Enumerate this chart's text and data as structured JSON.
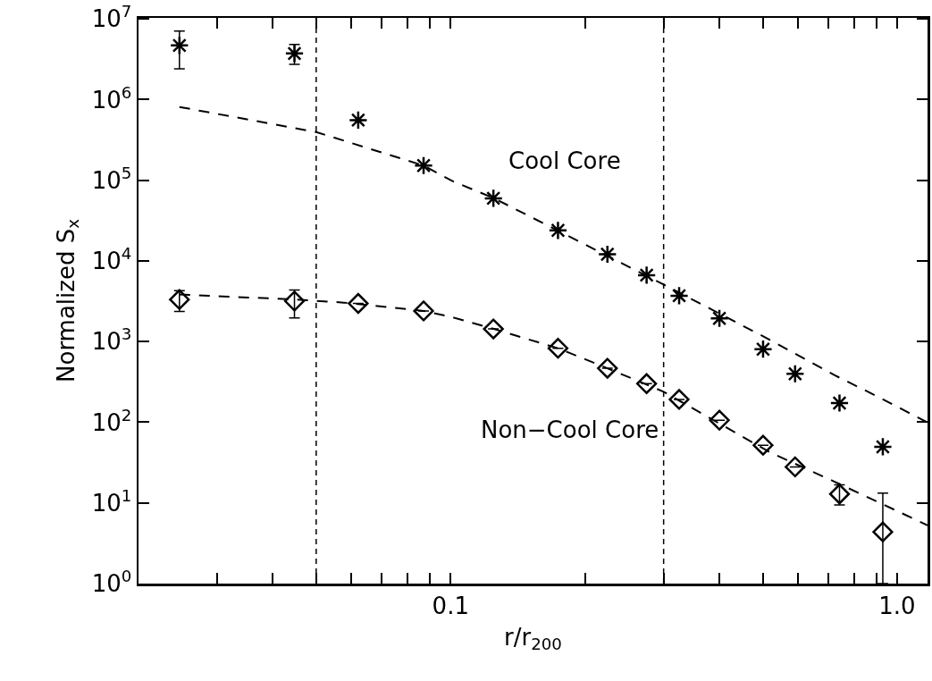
{
  "chart_data": {
    "type": "scatter",
    "xlabel": "r/r$_{200}$",
    "ylabel": "Normalized S$_{x}$",
    "log": "xy",
    "grid": false,
    "xlim": [
      0.02,
      1.17
    ],
    "xticks": [
      {
        "value": 0.03,
        "label": null
      },
      {
        "value": 0.04,
        "label": null
      },
      {
        "value": 0.05,
        "label": null
      },
      {
        "value": 0.06,
        "label": null
      },
      {
        "value": 0.07,
        "label": null
      },
      {
        "value": 0.08,
        "label": null
      },
      {
        "value": 0.09,
        "label": null
      },
      0.1,
      {
        "value": 0.2,
        "label": null
      },
      {
        "value": 0.3,
        "label": null
      },
      {
        "value": 0.4,
        "label": null
      },
      {
        "value": 0.5,
        "label": null
      },
      {
        "value": 0.6,
        "label": null
      },
      {
        "value": 0.7,
        "label": null
      },
      {
        "value": 0.8,
        "label": null
      },
      {
        "value": 0.9,
        "label": null
      },
      {
        "value": 1,
        "label": "1.0"
      }
    ],
    "ylim": [
      1,
      10300000
    ],
    "yticks": [
      {
        "value": 1,
        "label": "10$^{0}$"
      },
      {
        "value": 10,
        "label": "10$^{1}$"
      },
      {
        "value": 100,
        "label": "10$^{2}$"
      },
      {
        "value": 1000,
        "label": "10$^{3}$"
      },
      {
        "value": 10000,
        "label": "10$^{4}$"
      },
      {
        "value": 100000,
        "label": "10$^{5}$"
      },
      {
        "value": 1000000,
        "label": "10$^{6}$"
      },
      {
        "value": 10000000,
        "label": "10$^{7}$"
      }
    ],
    "series": [
      {
        "marker": "cross",
        "color": "#000000",
        "x": [
          0.0247,
          0.0447,
          0.0621,
          0.087,
          0.1247,
          0.174,
          0.2245,
          0.2748,
          0.325,
          0.4,
          0.501,
          0.591,
          0.743,
          0.929
        ],
        "values": [
          4690000,
          3730000,
          556000,
          152000,
          59700,
          23900,
          12100,
          6650,
          3700,
          1940,
          805,
          399,
          173,
          49.6
        ],
        "errors": [
          [
            2400000,
            7050000
          ],
          [
            2730000,
            4810000
          ],
          null,
          null,
          null,
          null,
          null,
          null,
          null,
          null,
          null,
          null,
          null,
          null
        ]
      },
      {
        "marker": "diamond",
        "color": "#000000",
        "x": [
          0.0247,
          0.0447,
          0.0621,
          0.087,
          0.1247,
          0.174,
          0.2245,
          0.2748,
          0.325,
          0.4,
          0.501,
          0.591,
          0.743,
          0.929
        ],
        "values": [
          3320,
          3180,
          2970,
          2400,
          1435,
          826,
          467,
          301,
          192,
          106,
          51.9,
          28,
          12.9,
          4.37
        ],
        "errors": [
          [
            2360,
            4280
          ],
          [
            1960,
            4370
          ],
          null,
          null,
          null,
          null,
          null,
          null,
          null,
          null,
          null,
          null,
          [
            9.46,
            16.8
          ],
          [
            1,
            13.2
          ]
        ]
      },
      {
        "type": "line",
        "marker": "none",
        "line_style": "dashed",
        "color": "#000000",
        "x": [
          0.0247,
          0.05,
          0.087,
          0.101,
          0.125,
          0.3,
          0.519,
          0.725,
          0.894,
          1.17
        ],
        "values": [
          810000,
          396000,
          152000,
          97500,
          60000,
          5100,
          1050,
          382,
          215,
          99.5
        ]
      },
      {
        "type": "line",
        "marker": "none",
        "line_style": "dashed",
        "color": "#000000",
        "x": [
          0.0247,
          0.045,
          0.0577,
          0.087,
          0.1,
          0.125,
          0.174,
          0.2245,
          0.3,
          0.519,
          0.725,
          1.17
        ],
        "values": [
          3830,
          3320,
          3040,
          2400,
          2030,
          1435,
          826,
          467,
          239,
          42.4,
          18.3,
          5.28
        ]
      }
    ],
    "ref_lines": [
      {
        "axis": "x",
        "value": 0.05,
        "line_style": "dotted",
        "color": "#000000"
      },
      {
        "axis": "x",
        "value": 0.3,
        "line_style": "dotted",
        "color": "#000000"
      }
    ],
    "annotations": [
      "Cool Core",
      "Non−Cool Core"
    ]
  }
}
